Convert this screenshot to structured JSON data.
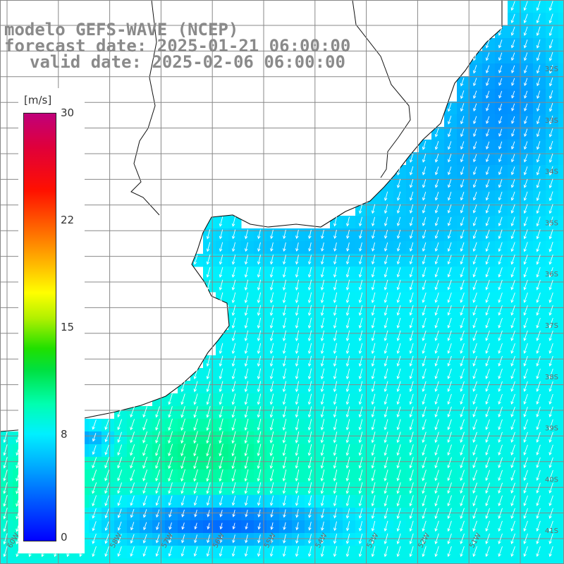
{
  "title": {
    "line1": "modelo GEFS-WAVE (NCEP)",
    "line2": "forecast date: 2025-01-21 06:00:00",
    "line3": "valid date: 2025-02-06 06:00:00"
  },
  "legend": {
    "unit": "[m/s]",
    "ticks": [
      {
        "value": 30,
        "label": "30"
      },
      {
        "value": 22,
        "label": "22"
      },
      {
        "value": 15,
        "label": "15"
      },
      {
        "value": 8,
        "label": "8"
      },
      {
        "value": 0,
        "label": "0"
      }
    ],
    "min": 0,
    "max": 30,
    "colors": [
      "#0000ff",
      "#00b0ff",
      "#00f0ff",
      "#00e040",
      "#b0f000",
      "#ffff00",
      "#ff7000",
      "#ff1000",
      "#c0007a"
    ]
  },
  "map": {
    "lat_labels": [
      "32S",
      "33S",
      "34S",
      "35S",
      "36S",
      "37S",
      "38S",
      "39S",
      "40S",
      "41S"
    ],
    "lon_labels": [
      "60W",
      "59W",
      "58W",
      "57W",
      "56W",
      "55W",
      "54W",
      "53W",
      "52W",
      "51W"
    ],
    "land_color": "#ffffff",
    "grid_color": "#888888",
    "arrow_color": "#ffffff"
  }
}
